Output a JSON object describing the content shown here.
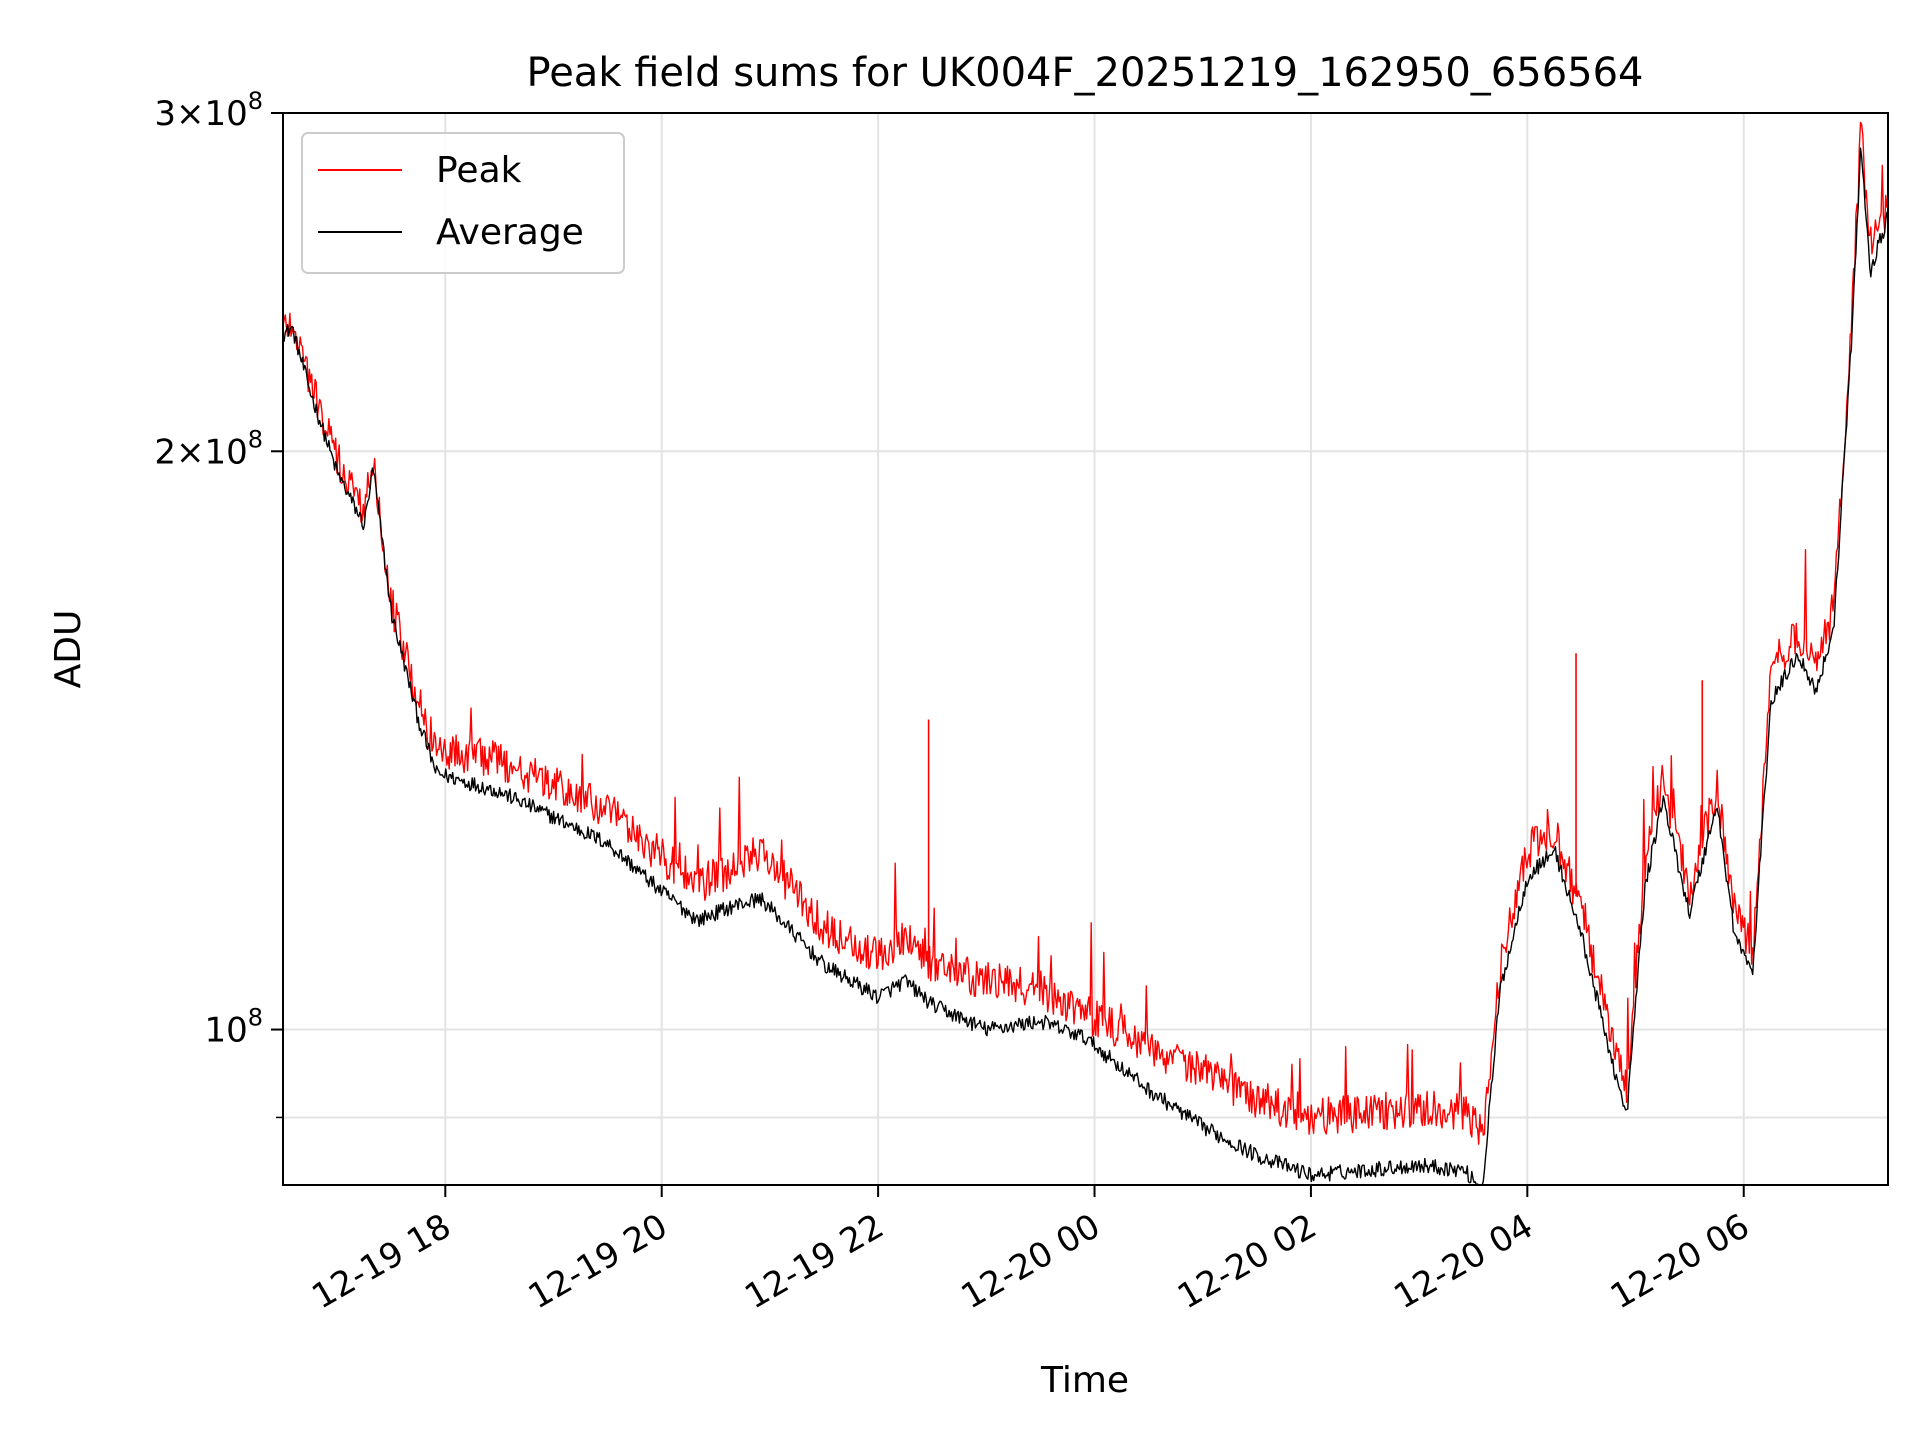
{
  "chart_data": {
    "type": "line",
    "title": "Peak field sums for UK004F_20251219_162950_656564",
    "xlabel": "Time",
    "ylabel": "ADU",
    "y_scale": "log",
    "ylim": [
      83000000,
      300000000
    ],
    "xlim": [
      "2025-12-19 16:30",
      "2025-12-20 07:20"
    ],
    "grid": true,
    "legend_position": "upper left",
    "x_ticks": [
      {
        "t": "2025-12-19 18:00",
        "label": "12-19 18"
      },
      {
        "t": "2025-12-19 20:00",
        "label": "12-19 20"
      },
      {
        "t": "2025-12-19 22:00",
        "label": "12-19 22"
      },
      {
        "t": "2025-12-20 00:00",
        "label": "12-20 00"
      },
      {
        "t": "2025-12-20 02:00",
        "label": "12-20 02"
      },
      {
        "t": "2025-12-20 04:00",
        "label": "12-20 04"
      },
      {
        "t": "2025-12-20 06:00",
        "label": "12-20 06"
      }
    ],
    "y_ticks": [
      {
        "value": 300000000,
        "mantissa": "3",
        "times": "×",
        "base": "10",
        "exp": "8"
      },
      {
        "value": 200000000,
        "mantissa": "2",
        "times": "×",
        "base": "10",
        "exp": "8"
      },
      {
        "value": 100000000,
        "mantissa": "",
        "times": "",
        "base": "10",
        "exp": "8"
      }
    ],
    "y_minor_ticks": [
      90000000
    ],
    "series": [
      {
        "name": "Average",
        "color": "#000000",
        "x": [
          "2025-12-19 16:30",
          "2025-12-19 16:35",
          "2025-12-19 16:45",
          "2025-12-19 17:00",
          "2025-12-19 17:15",
          "2025-12-19 17:20",
          "2025-12-19 17:30",
          "2025-12-19 17:45",
          "2025-12-19 17:55",
          "2025-12-19 18:30",
          "2025-12-19 19:00",
          "2025-12-19 19:30",
          "2025-12-19 20:00",
          "2025-12-19 20:20",
          "2025-12-19 20:40",
          "2025-12-19 20:55",
          "2025-12-19 21:30",
          "2025-12-19 22:00",
          "2025-12-19 22:15",
          "2025-12-19 22:30",
          "2025-12-19 23:00",
          "2025-12-19 23:30",
          "2025-12-19 23:55",
          "2025-12-20 00:30",
          "2025-12-20 01:00",
          "2025-12-20 01:30",
          "2025-12-20 02:00",
          "2025-12-20 02:30",
          "2025-12-20 03:00",
          "2025-12-20 03:25",
          "2025-12-20 03:35",
          "2025-12-20 03:45",
          "2025-12-20 04:00",
          "2025-12-20 04:15",
          "2025-12-20 04:30",
          "2025-12-20 04:45",
          "2025-12-20 04:55",
          "2025-12-20 05:05",
          "2025-12-20 05:15",
          "2025-12-20 05:30",
          "2025-12-20 05:45",
          "2025-12-20 05:55",
          "2025-12-20 06:05",
          "2025-12-20 06:15",
          "2025-12-20 06:30",
          "2025-12-20 06:40",
          "2025-12-20 06:50",
          "2025-12-20 07:00",
          "2025-12-20 07:05",
          "2025-12-20 07:10",
          "2025-12-20 07:20"
        ],
        "values": [
          230000000,
          232000000,
          215000000,
          195000000,
          183000000,
          196000000,
          165000000,
          145000000,
          136000000,
          133000000,
          129000000,
          125000000,
          118000000,
          114000000,
          116000000,
          117000000,
          108000000,
          104000000,
          106000000,
          103000000,
          100000000,
          101000000,
          99000000,
          93000000,
          89000000,
          86000000,
          84000000,
          84500000,
          85000000,
          84500000,
          82500000,
          105000000,
          120000000,
          124000000,
          112000000,
          98000000,
          90000000,
          118000000,
          132000000,
          115000000,
          131000000,
          112000000,
          107000000,
          148000000,
          157000000,
          150000000,
          162000000,
          230000000,
          290000000,
          248000000,
          265000000
        ]
      },
      {
        "name": "Peak",
        "color": "#ff0000",
        "x": [
          "2025-12-19 16:30",
          "2025-12-19 16:35",
          "2025-12-19 16:45",
          "2025-12-19 17:00",
          "2025-12-19 17:15",
          "2025-12-19 17:20",
          "2025-12-19 17:30",
          "2025-12-19 17:45",
          "2025-12-19 17:55",
          "2025-12-19 18:30",
          "2025-12-19 19:00",
          "2025-12-19 19:30",
          "2025-12-19 20:00",
          "2025-12-19 20:20",
          "2025-12-19 20:40",
          "2025-12-19 20:55",
          "2025-12-19 21:30",
          "2025-12-19 22:00",
          "2025-12-19 22:15",
          "2025-12-19 22:30",
          "2025-12-19 23:00",
          "2025-12-19 23:30",
          "2025-12-19 23:55",
          "2025-12-20 00:30",
          "2025-12-20 01:00",
          "2025-12-20 01:30",
          "2025-12-20 02:00",
          "2025-12-20 02:30",
          "2025-12-20 03:00",
          "2025-12-20 03:25",
          "2025-12-20 03:35",
          "2025-12-20 03:45",
          "2025-12-20 04:00",
          "2025-12-20 04:15",
          "2025-12-20 04:30",
          "2025-12-20 04:45",
          "2025-12-20 04:55",
          "2025-12-20 05:05",
          "2025-12-20 05:15",
          "2025-12-20 05:30",
          "2025-12-20 05:45",
          "2025-12-20 05:55",
          "2025-12-20 06:05",
          "2025-12-20 06:15",
          "2025-12-20 06:30",
          "2025-12-20 06:40",
          "2025-12-20 06:50",
          "2025-12-20 07:00",
          "2025-12-20 07:05",
          "2025-12-20 07:10",
          "2025-12-20 07:20"
        ],
        "values": [
          232000000,
          234000000,
          218000000,
          198000000,
          186000000,
          199000000,
          167000000,
          148000000,
          140000000,
          138000000,
          134000000,
          130000000,
          123000000,
          119000000,
          121000000,
          124000000,
          113000000,
          109000000,
          112000000,
          108000000,
          106000000,
          105000000,
          102000000,
          98000000,
          95000000,
          92000000,
          90000000,
          90500000,
          91000000,
          90500000,
          88000000,
          108000000,
          124000000,
          127000000,
          115000000,
          101000000,
          93000000,
          121000000,
          135000000,
          118000000,
          134000000,
          115000000,
          110000000,
          152000000,
          161000000,
          154000000,
          166000000,
          235000000,
          295000000,
          253000000,
          270000000
        ]
      }
    ],
    "spikes": [
      {
        "t": "2025-12-19 22:28",
        "value": 145000000,
        "series": "Peak"
      },
      {
        "t": "2025-12-20 04:27",
        "value": 157000000,
        "series": "Peak"
      },
      {
        "t": "2025-12-20 05:37",
        "value": 152000000,
        "series": "Peak"
      }
    ]
  }
}
